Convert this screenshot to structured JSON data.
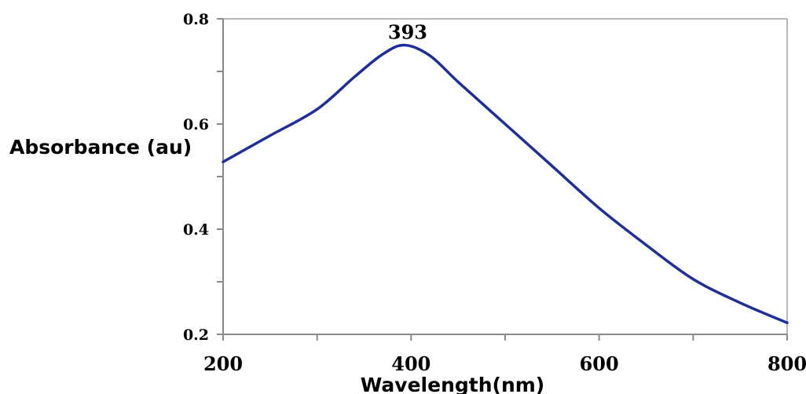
{
  "chart_data": {
    "type": "line",
    "title": "",
    "xlabel": "Wavelength(nm)",
    "ylabel": "Absorbance (au)",
    "xlim": [
      200,
      800
    ],
    "ylim": [
      0.2,
      0.8
    ],
    "x_ticks": [
      200,
      400,
      600,
      800
    ],
    "x_tick_labels": [
      "200",
      "400",
      "600",
      "800"
    ],
    "y_ticks": [
      0.2,
      0.4,
      0.6,
      0.8
    ],
    "y_tick_labels": [
      "0.2",
      "0.4",
      "0.6",
      "0.8"
    ],
    "grid": false,
    "legend": "none",
    "series": [
      {
        "color": "#1f2f9a",
        "x": [
          200,
          250,
          300,
          340,
          370,
          393,
          420,
          450,
          500,
          550,
          600,
          650,
          700,
          750,
          800
        ],
        "y": [
          0.528,
          0.578,
          0.628,
          0.69,
          0.733,
          0.75,
          0.73,
          0.68,
          0.6,
          0.52,
          0.44,
          0.37,
          0.305,
          0.26,
          0.222
        ]
      }
    ],
    "annotations": [
      {
        "text": "393",
        "x": 393,
        "y": 0.75
      }
    ]
  }
}
